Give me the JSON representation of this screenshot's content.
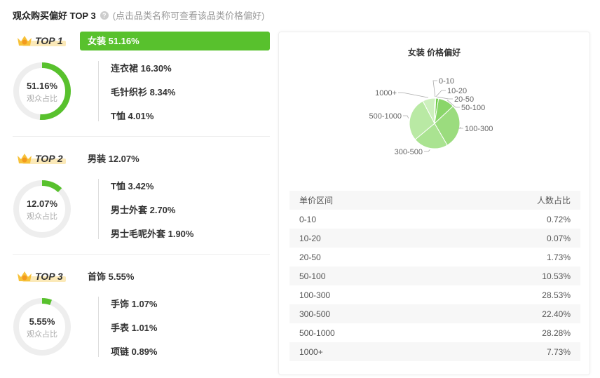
{
  "header": {
    "title": "观众购买偏好 TOP 3",
    "help_icon": "question-icon",
    "hint": "(点击品类名称可查看该品类价格偏好)"
  },
  "accent": "#58c12d",
  "donut_label": "观众占比",
  "sections": [
    {
      "rank": "TOP 1",
      "category": "女装 51.16%",
      "share": 51.16,
      "share_text": "51.16%",
      "active": true,
      "items": [
        "连衣裙 16.30%",
        "毛针织衫 8.34%",
        "T恤 4.01%"
      ]
    },
    {
      "rank": "TOP 2",
      "category": "男装 12.07%",
      "share": 12.07,
      "share_text": "12.07%",
      "active": false,
      "items": [
        "T恤 3.42%",
        "男士外套 2.70%",
        "男士毛呢外套 1.90%"
      ]
    },
    {
      "rank": "TOP 3",
      "category": "首饰 5.55%",
      "share": 5.55,
      "share_text": "5.55%",
      "active": false,
      "items": [
        "手饰 1.07%",
        "手表 1.01%",
        "项链 0.89%"
      ]
    }
  ],
  "price_card": {
    "title": "女装 价格偏好",
    "table_headers": [
      "单价区间",
      "人数占比"
    ],
    "rows": [
      [
        "0-10",
        "0.72%"
      ],
      [
        "10-20",
        "0.07%"
      ],
      [
        "20-50",
        "1.73%"
      ],
      [
        "50-100",
        "10.53%"
      ],
      [
        "100-300",
        "28.53%"
      ],
      [
        "300-500",
        "22.40%"
      ],
      [
        "500-1000",
        "28.28%"
      ],
      [
        "1000+",
        "7.73%"
      ]
    ]
  },
  "chart_data": {
    "type": "pie",
    "categories": [
      "0-10",
      "10-20",
      "20-50",
      "50-100",
      "100-300",
      "300-500",
      "500-1000",
      "1000+"
    ],
    "values": [
      0.72,
      0.07,
      1.73,
      10.53,
      28.53,
      22.4,
      28.28,
      7.73
    ],
    "colors": [
      "#7fd15a",
      "#5ac22e",
      "#6ccb44",
      "#8ad66a",
      "#9bdc7e",
      "#aae391",
      "#b9e9a4",
      "#cdf0bd"
    ]
  }
}
